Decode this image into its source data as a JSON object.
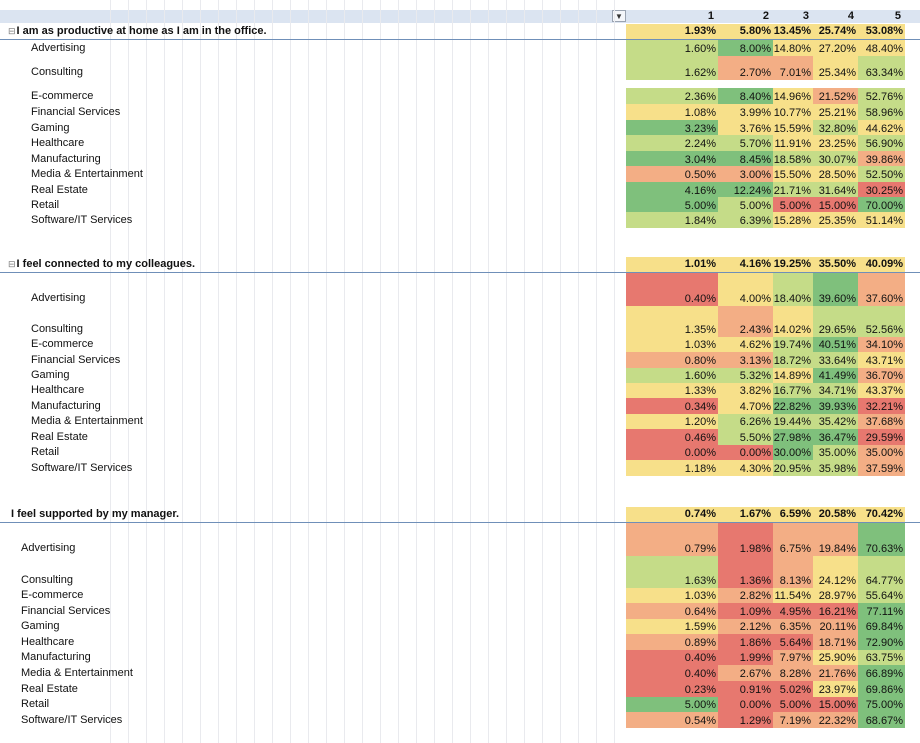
{
  "header": {
    "columns": [
      "1",
      "2",
      "3",
      "4",
      "5"
    ],
    "filter_icon": "filter-dropdown-icon"
  },
  "sections": [
    {
      "question": "I am as productive at home as I am in the office.",
      "totals": [
        "1.93%",
        "5.80%",
        "13.45%",
        "25.74%",
        "53.08%"
      ],
      "rows": [
        {
          "label": "Advertising",
          "values": [
            "1.60%",
            "8.00%",
            "14.80%",
            "27.20%",
            "48.40%"
          ]
        },
        {
          "label": "Consulting",
          "values": [
            "1.62%",
            "2.70%",
            "7.01%",
            "25.34%",
            "63.34%"
          ]
        },
        {
          "label": "E-commerce",
          "values": [
            "2.36%",
            "8.40%",
            "14.96%",
            "21.52%",
            "52.76%"
          ]
        },
        {
          "label": "Financial Services",
          "values": [
            "1.08%",
            "3.99%",
            "10.77%",
            "25.21%",
            "58.96%"
          ]
        },
        {
          "label": "Gaming",
          "values": [
            "3.23%",
            "3.76%",
            "15.59%",
            "32.80%",
            "44.62%"
          ]
        },
        {
          "label": "Healthcare",
          "values": [
            "2.24%",
            "5.70%",
            "11.91%",
            "23.25%",
            "56.90%"
          ]
        },
        {
          "label": "Manufacturing",
          "values": [
            "3.04%",
            "8.45%",
            "18.58%",
            "30.07%",
            "39.86%"
          ]
        },
        {
          "label": "Media & Entertainment",
          "values": [
            "0.50%",
            "3.00%",
            "15.50%",
            "28.50%",
            "52.50%"
          ]
        },
        {
          "label": "Real Estate",
          "values": [
            "4.16%",
            "12.24%",
            "21.71%",
            "31.64%",
            "30.25%"
          ]
        },
        {
          "label": "Retail",
          "values": [
            "5.00%",
            "5.00%",
            "5.00%",
            "15.00%",
            "70.00%"
          ]
        },
        {
          "label": "Software/IT Services",
          "values": [
            "1.84%",
            "6.39%",
            "15.28%",
            "25.35%",
            "51.14%"
          ]
        }
      ]
    },
    {
      "question": "I feel connected to my colleagues.",
      "totals": [
        "1.01%",
        "4.16%",
        "19.25%",
        "35.50%",
        "40.09%"
      ],
      "rows": [
        {
          "label": "Advertising",
          "values": [
            "0.40%",
            "4.00%",
            "18.40%",
            "39.60%",
            "37.60%"
          ]
        },
        {
          "label": "Consulting",
          "values": [
            "1.35%",
            "2.43%",
            "14.02%",
            "29.65%",
            "52.56%"
          ]
        },
        {
          "label": "E-commerce",
          "values": [
            "1.03%",
            "4.62%",
            "19.74%",
            "40.51%",
            "34.10%"
          ]
        },
        {
          "label": "Financial Services",
          "values": [
            "0.80%",
            "3.13%",
            "18.72%",
            "33.64%",
            "43.71%"
          ]
        },
        {
          "label": "Gaming",
          "values": [
            "1.60%",
            "5.32%",
            "14.89%",
            "41.49%",
            "36.70%"
          ]
        },
        {
          "label": "Healthcare",
          "values": [
            "1.33%",
            "3.82%",
            "16.77%",
            "34.71%",
            "43.37%"
          ]
        },
        {
          "label": "Manufacturing",
          "values": [
            "0.34%",
            "4.70%",
            "22.82%",
            "39.93%",
            "32.21%"
          ]
        },
        {
          "label": "Media & Entertainment",
          "values": [
            "1.20%",
            "6.26%",
            "19.44%",
            "35.42%",
            "37.68%"
          ]
        },
        {
          "label": "Real Estate",
          "values": [
            "0.46%",
            "5.50%",
            "27.98%",
            "36.47%",
            "29.59%"
          ]
        },
        {
          "label": "Retail",
          "values": [
            "0.00%",
            "0.00%",
            "30.00%",
            "35.00%",
            "35.00%"
          ]
        },
        {
          "label": "Software/IT Services",
          "values": [
            "1.18%",
            "4.30%",
            "20.95%",
            "35.98%",
            "37.59%"
          ]
        }
      ]
    },
    {
      "question": "I feel supported by my manager.",
      "totals": [
        "0.74%",
        "1.67%",
        "6.59%",
        "20.58%",
        "70.42%"
      ],
      "rows": [
        {
          "label": "Advertising",
          "values": [
            "0.79%",
            "1.98%",
            "6.75%",
            "19.84%",
            "70.63%"
          ]
        },
        {
          "label": "Consulting",
          "values": [
            "1.63%",
            "1.36%",
            "8.13%",
            "24.12%",
            "64.77%"
          ]
        },
        {
          "label": "E-commerce",
          "values": [
            "1.03%",
            "2.82%",
            "11.54%",
            "28.97%",
            "55.64%"
          ]
        },
        {
          "label": "Financial Services",
          "values": [
            "0.64%",
            "1.09%",
            "4.95%",
            "16.21%",
            "77.11%"
          ]
        },
        {
          "label": "Gaming",
          "values": [
            "1.59%",
            "2.12%",
            "6.35%",
            "20.11%",
            "69.84%"
          ]
        },
        {
          "label": "Healthcare",
          "values": [
            "0.89%",
            "1.86%",
            "5.64%",
            "18.71%",
            "72.90%"
          ]
        },
        {
          "label": "Manufacturing",
          "values": [
            "0.40%",
            "1.99%",
            "7.97%",
            "25.90%",
            "63.75%"
          ]
        },
        {
          "label": "Media & Entertainment",
          "values": [
            "0.40%",
            "2.67%",
            "8.28%",
            "21.76%",
            "66.89%"
          ]
        },
        {
          "label": "Real Estate",
          "values": [
            "0.23%",
            "0.91%",
            "5.02%",
            "23.97%",
            "69.86%"
          ]
        },
        {
          "label": "Retail",
          "values": [
            "5.00%",
            "0.00%",
            "5.00%",
            "15.00%",
            "75.00%"
          ]
        },
        {
          "label": "Software/IT Services",
          "values": [
            "0.54%",
            "1.29%",
            "7.19%",
            "22.32%",
            "68.67%"
          ]
        }
      ]
    }
  ],
  "palette": {
    "red": "#e7786f",
    "orange": "#f3ae85",
    "yellow": "#f7e08a",
    "light_green": "#c5dc88",
    "green": "#7fc07c",
    "header_blue": "#dbe4f1"
  }
}
